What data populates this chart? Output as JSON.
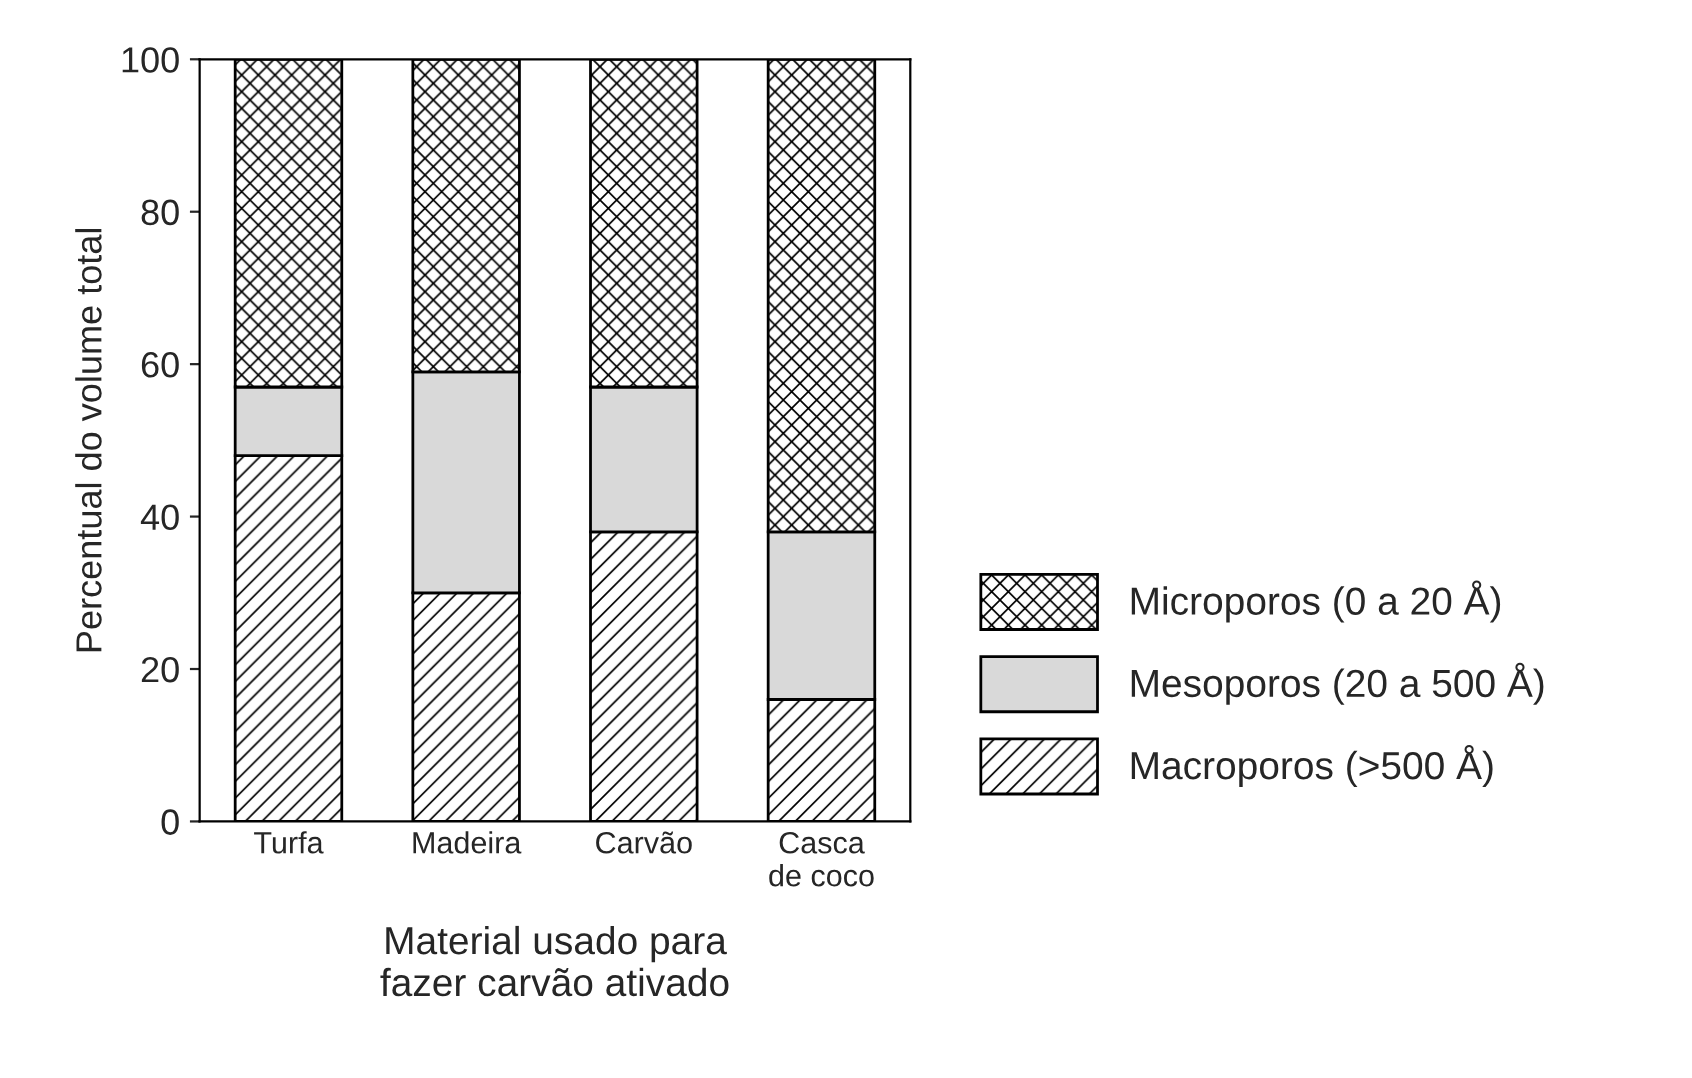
{
  "chart_data": {
    "type": "bar",
    "stacked": true,
    "xlabel": "Material usado para\nfazer carvão ativado",
    "ylabel": "Percentual do volume total",
    "categories": [
      "Turfa",
      "Madeira",
      "Carvão",
      "Casca\nde coco"
    ],
    "series": [
      {
        "name": "Macroporos (>500 Å)",
        "color": "#000000",
        "values": [
          48,
          30,
          38,
          16
        ]
      },
      {
        "name": "Mesoporos (20 a 500 Å)",
        "color": "#d9d9d9",
        "values": [
          9,
          29,
          19,
          22
        ]
      },
      {
        "name": "Microporos (0 a 20 Å)",
        "color": "#000000",
        "values": [
          43,
          41,
          43,
          62
        ]
      }
    ],
    "ylim": [
      0,
      100
    ],
    "yticks": [
      0,
      20,
      40,
      60,
      80,
      100
    ],
    "grid": false,
    "legend": "right"
  }
}
